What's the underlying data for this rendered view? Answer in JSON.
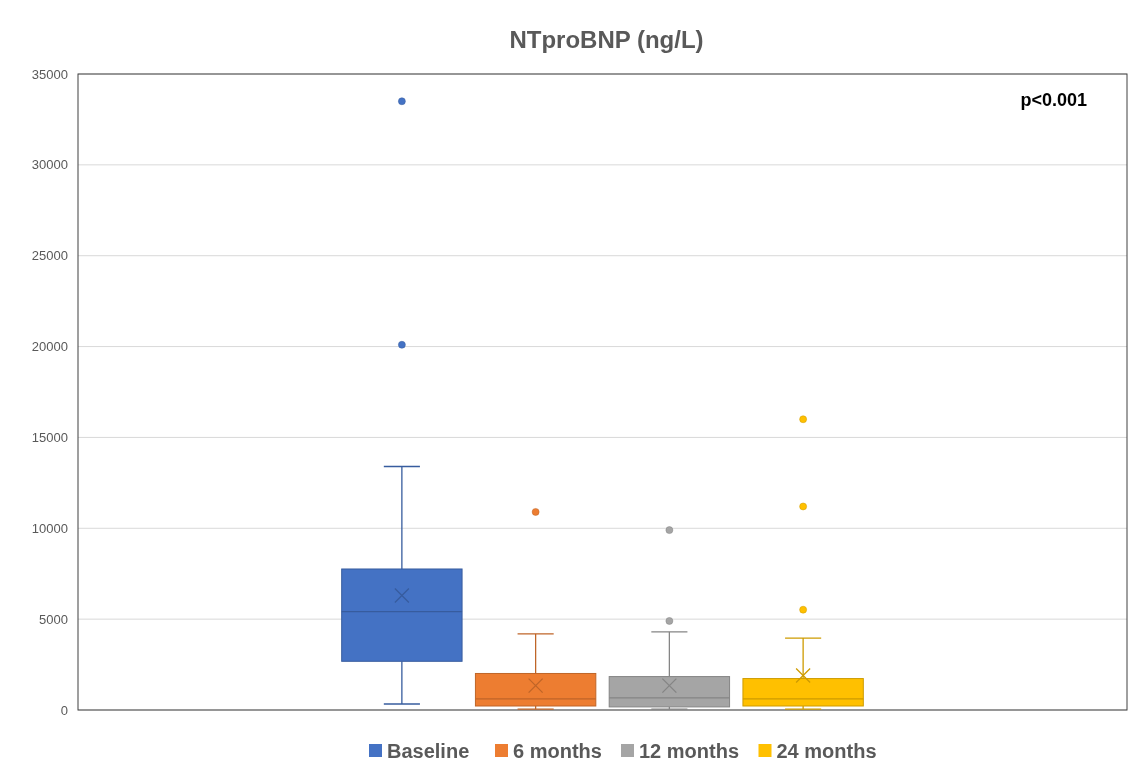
{
  "chart_data": {
    "type": "box",
    "title": "NTproBNP (ng/L)",
    "categories": [
      null
    ],
    "annotations": [
      "p<0.001"
    ],
    "ylim": [
      0,
      35000
    ],
    "yticks": [
      0,
      5000,
      10000,
      15000,
      20000,
      25000,
      30000,
      35000
    ],
    "grid": "y",
    "legend": "bottom",
    "series": [
      {
        "name": "Baseline",
        "color": "#4472c4",
        "boxes": [
          {
            "low": 330,
            "q1": 2680,
            "median": 5410,
            "q3": 7760,
            "high": 13400,
            "mean": 6300,
            "outliers": [
              20100,
              33500
            ]
          }
        ]
      },
      {
        "name": "6 months",
        "color": "#ed7d31",
        "boxes": [
          {
            "low": 50,
            "q1": 220,
            "median": 610,
            "q3": 2010,
            "high": 4190,
            "mean": 1340,
            "outliers": [
              10900
            ]
          }
        ]
      },
      {
        "name": "12 months",
        "color": "#a5a5a5",
        "boxes": [
          {
            "low": 50,
            "q1": 170,
            "median": 670,
            "q3": 1840,
            "high": 4300,
            "mean": 1340,
            "outliers": [
              4900,
              9900
            ]
          }
        ]
      },
      {
        "name": "24 months",
        "color": "#ffc000",
        "boxes": [
          {
            "low": 50,
            "q1": 220,
            "median": 610,
            "q3": 1730,
            "high": 3960,
            "mean": 1900,
            "outliers": [
              5520,
              11200,
              16000
            ]
          }
        ]
      }
    ]
  }
}
